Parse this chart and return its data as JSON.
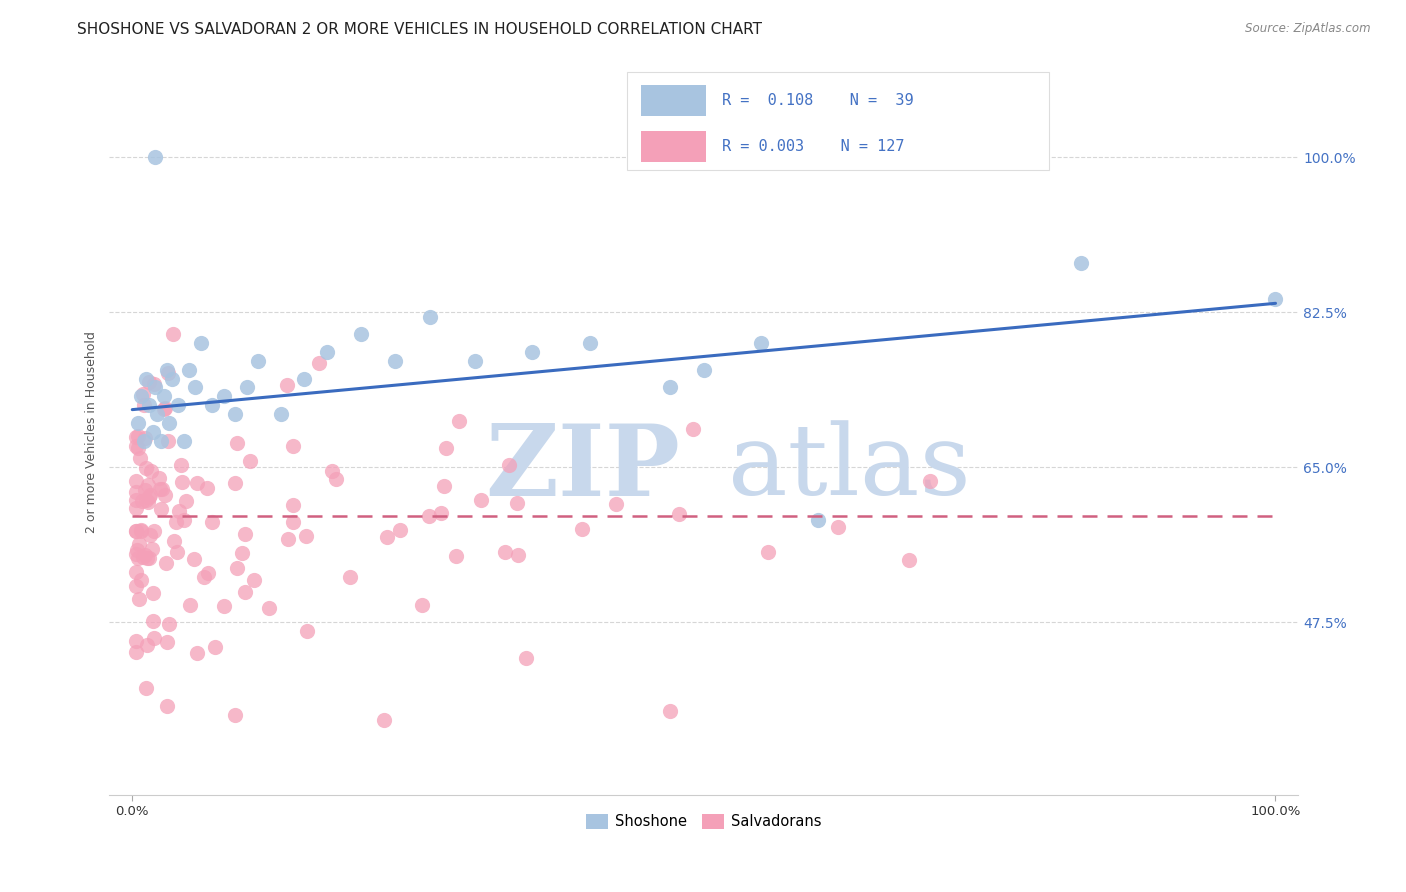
{
  "title": "SHOSHONE VS SALVADORAN 2 OR MORE VEHICLES IN HOUSEHOLD CORRELATION CHART",
  "source": "Source: ZipAtlas.com",
  "ylabel": "2 or more Vehicles in Household",
  "yticks": [
    47.5,
    65.0,
    82.5,
    100.0
  ],
  "shoshone_color": "#a8c4e0",
  "salvadoran_color": "#f4a0b8",
  "trendline_shoshone_color": "#3a6bbf",
  "trendline_salvadoran_color": "#d06080",
  "watermark_zip_color": "#c8d8ec",
  "watermark_atlas_color": "#c8d8ec",
  "legend_box_color": "#4472c4",
  "legend_text_color": "#4472c4",
  "grid_color": "#cccccc",
  "bg_color": "#ffffff",
  "title_fontsize": 11,
  "xlim": [
    -2,
    102
  ],
  "ylim": [
    28,
    110
  ],
  "sho_trend_start": 71.5,
  "sho_trend_end": 83.5,
  "sal_trend_y": 59.5
}
